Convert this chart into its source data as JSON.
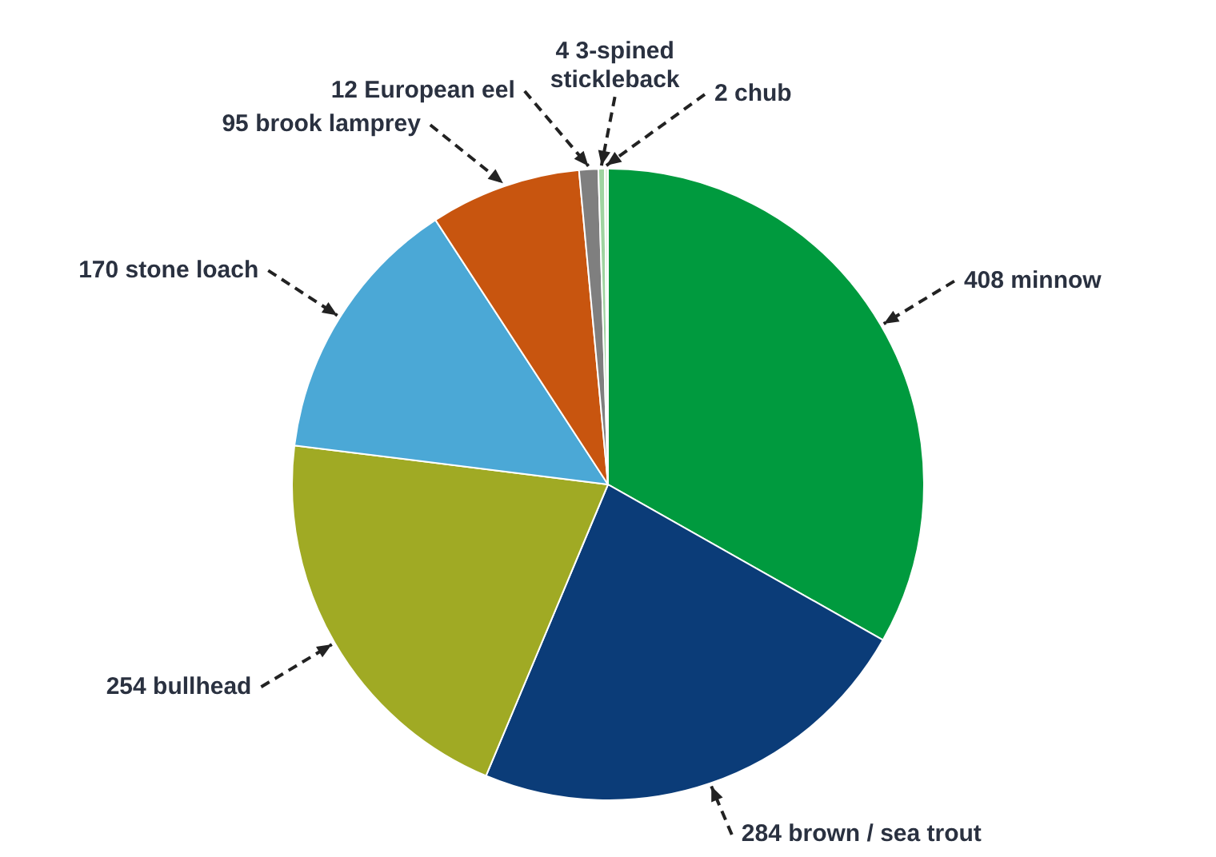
{
  "chart_data": {
    "type": "pie",
    "categories": [
      "408 minnow",
      "284 brown / sea trout",
      "254 bullhead",
      "170 stone loach",
      "95 brook lamprey",
      "12 European eel",
      "4 3-spined stickleback",
      "2 chub"
    ],
    "values": [
      408,
      284,
      254,
      170,
      95,
      12,
      4,
      2
    ],
    "colors": [
      "#009a3e",
      "#0b3c78",
      "#a0aa24",
      "#4ba8d6",
      "#c8550f",
      "#7f7f7f",
      "#9fd3a0",
      "#e4eee0"
    ]
  }
}
